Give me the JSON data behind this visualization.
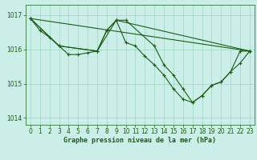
{
  "title": "Graphe pression niveau de la mer (hPa)",
  "background_color": "#cceee8",
  "grid_color": "#aaddcc",
  "line_color": "#1a5c1a",
  "xlim": [
    -0.5,
    23.5
  ],
  "ylim": [
    1013.8,
    1017.3
  ],
  "yticks": [
    1014,
    1015,
    1016,
    1017
  ],
  "xticks": [
    0,
    1,
    2,
    3,
    4,
    5,
    6,
    7,
    8,
    9,
    10,
    11,
    12,
    13,
    14,
    15,
    16,
    17,
    18,
    19,
    20,
    21,
    22,
    23
  ],
  "series": [
    {
      "x": [
        0,
        1,
        2,
        3,
        4,
        5,
        6,
        7,
        8,
        9,
        10,
        11,
        12,
        13,
        14,
        15,
        16,
        17,
        18,
        19,
        20,
        21,
        22,
        23
      ],
      "y": [
        1016.9,
        1016.55,
        1016.35,
        1016.1,
        1015.85,
        1015.85,
        1015.9,
        1015.95,
        1016.55,
        1016.85,
        1016.2,
        1016.1,
        1015.8,
        1015.55,
        1015.25,
        1014.85,
        1014.55,
        1014.45,
        1014.65,
        1014.95,
        1015.05,
        1015.35,
        1015.95,
        1015.95
      ]
    },
    {
      "x": [
        0,
        3,
        7,
        8,
        9,
        10,
        13,
        14,
        15,
        16,
        17,
        18,
        19,
        20,
        21,
        22,
        23
      ],
      "y": [
        1016.9,
        1016.1,
        1015.95,
        1016.55,
        1016.85,
        1016.85,
        1016.1,
        1015.55,
        1015.25,
        1014.85,
        1014.45,
        1014.65,
        1014.95,
        1015.05,
        1015.35,
        1015.6,
        1015.95
      ]
    },
    {
      "x": [
        0,
        3,
        7,
        9,
        23
      ],
      "y": [
        1016.9,
        1016.1,
        1015.95,
        1016.85,
        1015.95
      ]
    },
    {
      "x": [
        0,
        23
      ],
      "y": [
        1016.9,
        1015.95
      ]
    }
  ]
}
